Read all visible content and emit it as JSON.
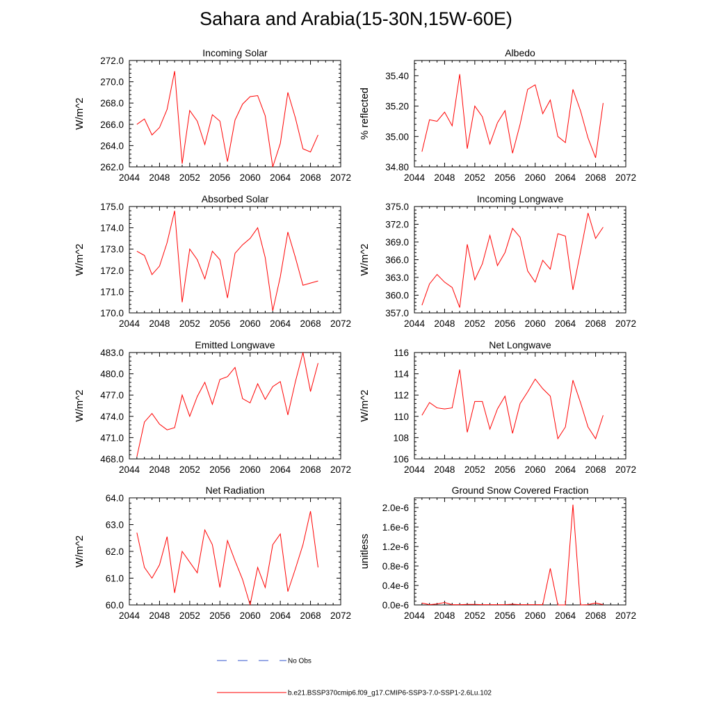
{
  "title": "Sahara and Arabia(15-30N,15W-60E)",
  "line_color": "#ff0000",
  "obs_color": "#3355cc",
  "legend": {
    "obs_label": "No Obs",
    "model_label": "b.e21.BSSP370cmip6.f09_g17.CMIP6-SSP3-7.0-SSP1-2.6Lu.102"
  },
  "chart_data": [
    {
      "type": "line",
      "title": "Incoming Solar",
      "ylabel": "W/m^2",
      "xlim": [
        2044,
        2072
      ],
      "xticks": [
        2044,
        2048,
        2052,
        2056,
        2060,
        2064,
        2068,
        2072
      ],
      "ylim": [
        262.0,
        272.0
      ],
      "yticks": [
        262.0,
        264.0,
        266.0,
        268.0,
        270.0,
        272.0
      ],
      "ytick_labels": [
        "262.0",
        "264.0",
        "266.0",
        "268.0",
        "270.0",
        "272.0"
      ],
      "x": [
        2045,
        2046,
        2047,
        2048,
        2049,
        2050,
        2051,
        2052,
        2053,
        2054,
        2055,
        2056,
        2057,
        2058,
        2059,
        2060,
        2061,
        2062,
        2063,
        2064,
        2065,
        2066,
        2067,
        2068,
        2069
      ],
      "y": [
        266.0,
        266.5,
        265.0,
        265.7,
        267.4,
        271.0,
        262.3,
        267.3,
        266.3,
        264.1,
        266.9,
        266.3,
        262.5,
        266.4,
        267.9,
        268.6,
        268.7,
        266.8,
        262.0,
        264.2,
        269.0,
        266.6,
        263.7,
        263.4,
        265.0
      ]
    },
    {
      "type": "line",
      "title": "Albedo",
      "ylabel": "% reflected",
      "xlim": [
        2044,
        2072
      ],
      "xticks": [
        2044,
        2048,
        2052,
        2056,
        2060,
        2064,
        2068,
        2072
      ],
      "ylim": [
        34.8,
        35.5
      ],
      "yticks": [
        34.8,
        35.0,
        35.2,
        35.4
      ],
      "ytick_labels": [
        "34.80",
        "35.00",
        "35.20",
        "35.40"
      ],
      "x": [
        2045,
        2046,
        2047,
        2048,
        2049,
        2050,
        2051,
        2052,
        2053,
        2054,
        2055,
        2056,
        2057,
        2058,
        2059,
        2060,
        2061,
        2062,
        2063,
        2064,
        2065,
        2066,
        2067,
        2068,
        2069
      ],
      "y": [
        34.9,
        35.11,
        35.1,
        35.16,
        35.07,
        35.41,
        34.92,
        35.2,
        35.13,
        34.95,
        35.09,
        35.17,
        34.89,
        35.08,
        35.31,
        35.34,
        35.15,
        35.24,
        35.0,
        34.96,
        35.31,
        35.17,
        34.99,
        34.86,
        35.22
      ]
    },
    {
      "type": "line",
      "title": "Absorbed Solar",
      "ylabel": "W/m^2",
      "xlim": [
        2044,
        2072
      ],
      "xticks": [
        2044,
        2048,
        2052,
        2056,
        2060,
        2064,
        2068,
        2072
      ],
      "ylim": [
        170.0,
        175.0
      ],
      "yticks": [
        170.0,
        171.0,
        172.0,
        173.0,
        174.0,
        175.0
      ],
      "ytick_labels": [
        "170.0",
        "171.0",
        "172.0",
        "173.0",
        "174.0",
        "175.0"
      ],
      "x": [
        2045,
        2046,
        2047,
        2048,
        2049,
        2050,
        2051,
        2052,
        2053,
        2054,
        2055,
        2056,
        2057,
        2058,
        2059,
        2060,
        2061,
        2062,
        2063,
        2064,
        2065,
        2066,
        2067,
        2068,
        2069
      ],
      "y": [
        172.9,
        172.7,
        171.8,
        172.2,
        173.3,
        174.8,
        170.5,
        173.0,
        172.5,
        171.6,
        172.9,
        172.5,
        170.7,
        172.8,
        173.2,
        173.5,
        174.0,
        172.6,
        170.1,
        171.7,
        173.8,
        172.6,
        171.3,
        171.4,
        171.5
      ]
    },
    {
      "type": "line",
      "title": "Incoming Longwave",
      "ylabel": "W/m^2",
      "xlim": [
        2044,
        2072
      ],
      "xticks": [
        2044,
        2048,
        2052,
        2056,
        2060,
        2064,
        2068,
        2072
      ],
      "ylim": [
        357.0,
        375.0
      ],
      "yticks": [
        357.0,
        360.0,
        363.0,
        366.0,
        369.0,
        372.0,
        375.0
      ],
      "ytick_labels": [
        "357.0",
        "360.0",
        "363.0",
        "366.0",
        "369.0",
        "372.0",
        "375.0"
      ],
      "x": [
        2045,
        2046,
        2047,
        2048,
        2049,
        2050,
        2051,
        2052,
        2053,
        2054,
        2055,
        2056,
        2057,
        2058,
        2059,
        2060,
        2061,
        2062,
        2063,
        2064,
        2065,
        2066,
        2067,
        2068,
        2069
      ],
      "y": [
        358.3,
        361.9,
        363.5,
        362.2,
        361.3,
        357.9,
        368.6,
        362.6,
        365.3,
        370.1,
        365.0,
        367.2,
        371.3,
        369.8,
        364.1,
        362.2,
        365.9,
        364.4,
        370.4,
        370.0,
        360.9,
        367.3,
        373.9,
        369.6,
        371.5
      ]
    },
    {
      "type": "line",
      "title": "Emitted Longwave",
      "ylabel": "W/m^2",
      "xlim": [
        2044,
        2072
      ],
      "xticks": [
        2044,
        2048,
        2052,
        2056,
        2060,
        2064,
        2068,
        2072
      ],
      "ylim": [
        468.0,
        483.0
      ],
      "yticks": [
        468.0,
        471.0,
        474.0,
        477.0,
        480.0,
        483.0
      ],
      "ytick_labels": [
        "468.0",
        "471.0",
        "474.0",
        "477.0",
        "480.0",
        "483.0"
      ],
      "x": [
        2045,
        2046,
        2047,
        2048,
        2049,
        2050,
        2051,
        2052,
        2053,
        2054,
        2055,
        2056,
        2057,
        2058,
        2059,
        2060,
        2061,
        2062,
        2063,
        2064,
        2065,
        2066,
        2067,
        2068,
        2069
      ],
      "y": [
        468.3,
        473.2,
        474.4,
        472.9,
        472.1,
        472.4,
        477.0,
        474.0,
        476.8,
        478.8,
        475.7,
        479.2,
        479.6,
        480.9,
        476.5,
        475.9,
        478.6,
        476.4,
        478.2,
        478.9,
        474.2,
        478.9,
        483.0,
        477.5,
        481.5
      ]
    },
    {
      "type": "line",
      "title": "Net Longwave",
      "ylabel": "W/m^2",
      "xlim": [
        2044,
        2072
      ],
      "xticks": [
        2044,
        2048,
        2052,
        2056,
        2060,
        2064,
        2068,
        2072
      ],
      "ylim": [
        106,
        116
      ],
      "yticks": [
        106,
        108,
        110,
        112,
        114,
        116
      ],
      "ytick_labels": [
        "106",
        "108",
        "110",
        "112",
        "114",
        "116"
      ],
      "x": [
        2045,
        2046,
        2047,
        2048,
        2049,
        2050,
        2051,
        2052,
        2053,
        2054,
        2055,
        2056,
        2057,
        2058,
        2059,
        2060,
        2061,
        2062,
        2063,
        2064,
        2065,
        2066,
        2067,
        2068,
        2069
      ],
      "y": [
        110.1,
        111.3,
        110.8,
        110.7,
        110.8,
        114.4,
        108.5,
        111.4,
        111.4,
        108.8,
        110.7,
        111.9,
        108.4,
        111.2,
        112.3,
        113.5,
        112.6,
        111.9,
        107.9,
        109.0,
        113.4,
        111.3,
        109.0,
        107.9,
        110.1
      ]
    },
    {
      "type": "line",
      "title": "Net Radiation",
      "ylabel": "W/m^2",
      "xlim": [
        2044,
        2072
      ],
      "xticks": [
        2044,
        2048,
        2052,
        2056,
        2060,
        2064,
        2068,
        2072
      ],
      "ylim": [
        60.0,
        64.0
      ],
      "yticks": [
        60.0,
        61.0,
        62.0,
        63.0,
        64.0
      ],
      "ytick_labels": [
        "60.0",
        "61.0",
        "62.0",
        "63.0",
        "64.0"
      ],
      "x": [
        2045,
        2046,
        2047,
        2048,
        2049,
        2050,
        2051,
        2052,
        2053,
        2054,
        2055,
        2056,
        2057,
        2058,
        2059,
        2060,
        2061,
        2062,
        2063,
        2064,
        2065,
        2066,
        2067,
        2068,
        2069
      ],
      "y": [
        62.7,
        61.4,
        61.0,
        61.5,
        62.55,
        60.45,
        62.0,
        61.6,
        61.2,
        62.8,
        62.25,
        60.65,
        62.4,
        61.65,
        60.95,
        60.0,
        61.4,
        60.65,
        62.25,
        62.65,
        60.5,
        61.35,
        62.25,
        63.5,
        61.4
      ]
    },
    {
      "type": "line",
      "title": "Ground Snow Covered Fraction",
      "ylabel": "unitless",
      "xlim": [
        2044,
        2072
      ],
      "xticks": [
        2044,
        2048,
        2052,
        2056,
        2060,
        2064,
        2068,
        2072
      ],
      "ylim": [
        0,
        2.2e-06
      ],
      "yticks": [
        0,
        4e-07,
        8e-07,
        1.2e-06,
        1.6e-06,
        2e-06
      ],
      "ytick_labels": [
        "0.0e-6",
        "0.4e-6",
        "0.8e-6",
        "1.2e-6",
        "1.6e-6",
        "2.0e-6"
      ],
      "x": [
        2045,
        2046,
        2047,
        2048,
        2049,
        2050,
        2051,
        2052,
        2053,
        2054,
        2055,
        2056,
        2057,
        2058,
        2059,
        2060,
        2061,
        2062,
        2063,
        2064,
        2065,
        2066,
        2067,
        2068,
        2069
      ],
      "y": [
        4e-08,
        5e-09,
        2e-08,
        5e-08,
        5e-09,
        5e-09,
        1e-08,
        1e-08,
        5e-09,
        5e-09,
        5e-09,
        5e-09,
        1.5e-08,
        5e-09,
        5e-09,
        5e-09,
        5e-09,
        7.5e-07,
        0,
        0,
        2.06e-06,
        0,
        5e-09,
        4e-08,
        5e-09
      ]
    }
  ]
}
